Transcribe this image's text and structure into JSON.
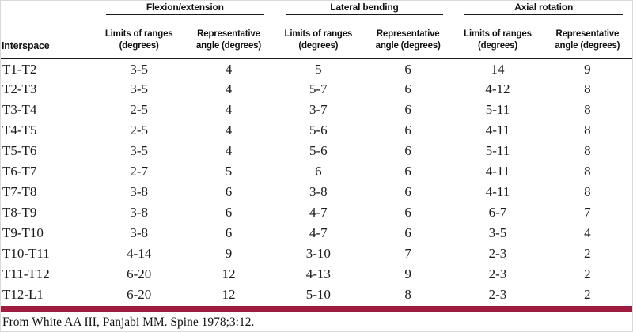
{
  "table": {
    "row_header_label": "Interspace",
    "groups": [
      {
        "label": "Flexion/extension"
      },
      {
        "label": "Lateral bending"
      },
      {
        "label": "Axial rotation"
      }
    ],
    "subcolumns": [
      {
        "line1": "Limits of ranges",
        "line2": "(degrees)"
      },
      {
        "line1": "Representative",
        "line2": "angle (degrees)"
      }
    ],
    "rows": [
      {
        "interspace": "T1-T2",
        "values": [
          "3-5",
          "4",
          "5",
          "6",
          "14",
          "9"
        ]
      },
      {
        "interspace": "T2-T3",
        "values": [
          "3-5",
          "4",
          "5-7",
          "6",
          "4-12",
          "8"
        ]
      },
      {
        "interspace": "T3-T4",
        "values": [
          "2-5",
          "4",
          "3-7",
          "6",
          "5-11",
          "8"
        ]
      },
      {
        "interspace": "T4-T5",
        "values": [
          "2-5",
          "4",
          "5-6",
          "6",
          "4-11",
          "8"
        ]
      },
      {
        "interspace": "T5-T6",
        "values": [
          "3-5",
          "4",
          "5-6",
          "6",
          "5-11",
          "8"
        ]
      },
      {
        "interspace": "T6-T7",
        "values": [
          "2-7",
          "5",
          "6",
          "6",
          "4-11",
          "8"
        ]
      },
      {
        "interspace": "T7-T8",
        "values": [
          "3-8",
          "6",
          "3-8",
          "6",
          "4-11",
          "8"
        ]
      },
      {
        "interspace": "T8-T9",
        "values": [
          "3-8",
          "6",
          "4-7",
          "6",
          "6-7",
          "7"
        ]
      },
      {
        "interspace": "T9-T10",
        "values": [
          "3-8",
          "6",
          "4-7",
          "6",
          "3-5",
          "4"
        ]
      },
      {
        "interspace": "T10-T11",
        "values": [
          "4-14",
          "9",
          "3-10",
          "7",
          "2-3",
          "2"
        ]
      },
      {
        "interspace": "T11-T12",
        "values": [
          "6-20",
          "12",
          "4-13",
          "9",
          "2-3",
          "2"
        ]
      },
      {
        "interspace": "T12-L1",
        "values": [
          "6-20",
          "12",
          "5-10",
          "8",
          "2-3",
          "2"
        ]
      }
    ]
  },
  "footer": {
    "citation": "From White AA III, Panjabi MM. Spine 1978;3:12."
  },
  "colors": {
    "accent_bar": "#9d1c40",
    "rule": "#1a1a1a",
    "text": "#1b1b1b"
  }
}
